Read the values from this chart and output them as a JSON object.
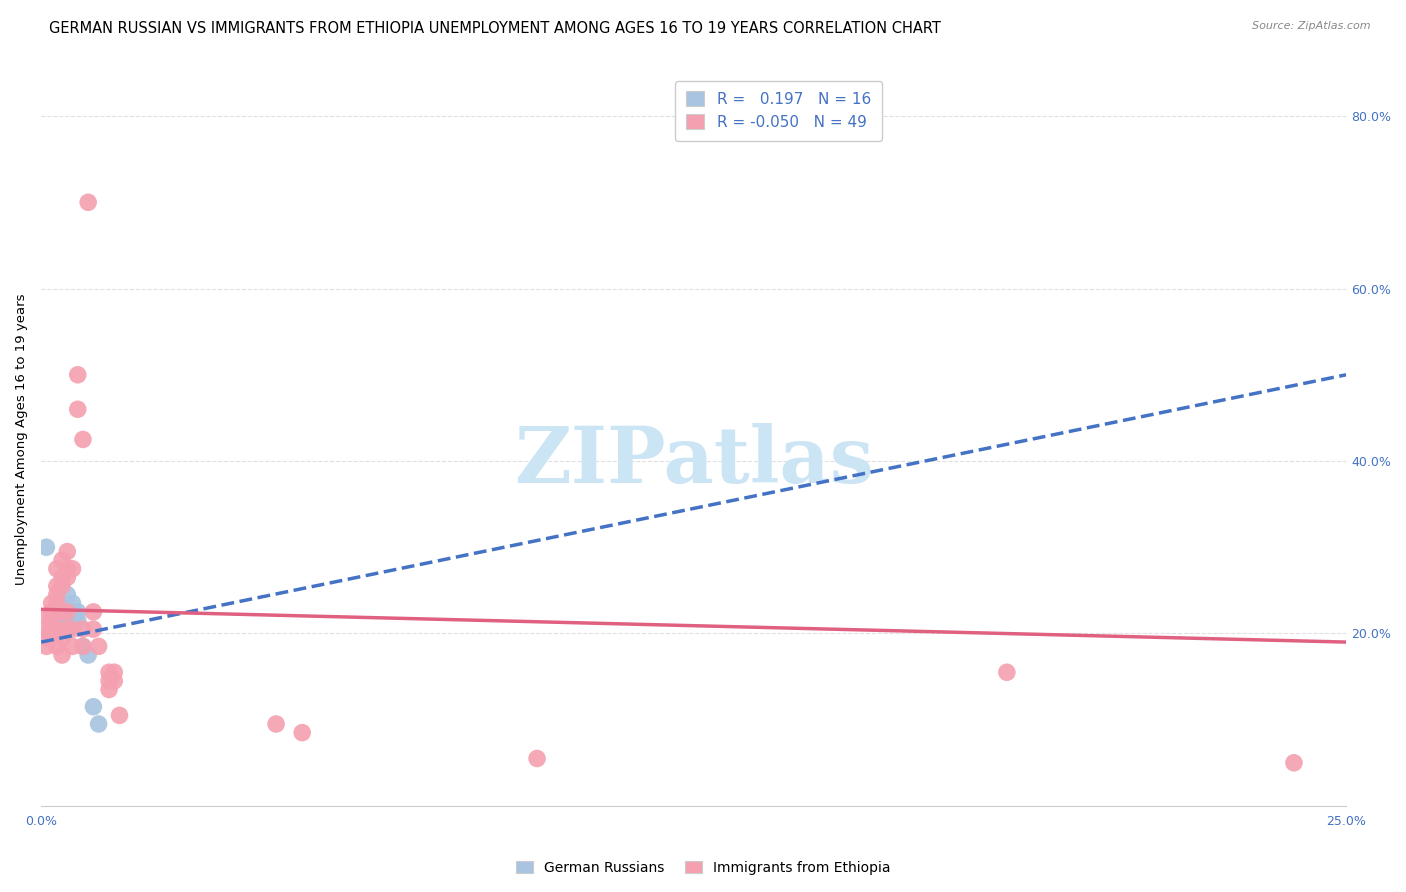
{
  "title": "GERMAN RUSSIAN VS IMMIGRANTS FROM ETHIOPIA UNEMPLOYMENT AMONG AGES 16 TO 19 YEARS CORRELATION CHART",
  "source": "Source: ZipAtlas.com",
  "ylabel": "Unemployment Among Ages 16 to 19 years",
  "xmin": 0.0,
  "xmax": 0.25,
  "ymin": 0.0,
  "ymax": 0.85,
  "yticks_right": [
    0.2,
    0.4,
    0.6,
    0.8
  ],
  "ytick_labels_right": [
    "20.0%",
    "40.0%",
    "60.0%",
    "80.0%"
  ],
  "xtick_positions": [
    0.0,
    0.05,
    0.1,
    0.15,
    0.2,
    0.25
  ],
  "xtick_labels": [
    "0.0%",
    "",
    "",
    "",
    "",
    "25.0%"
  ],
  "blue_R": 0.197,
  "blue_N": 16,
  "pink_R": -0.05,
  "pink_N": 49,
  "blue_scatter_color": "#a8c4e0",
  "pink_scatter_color": "#f4a0b0",
  "blue_line_color": "#4472c4",
  "pink_line_color": "#e06080",
  "blue_scatter": [
    [
      0.001,
      0.3
    ],
    [
      0.003,
      0.22
    ],
    [
      0.003,
      0.21
    ],
    [
      0.004,
      0.225
    ],
    [
      0.004,
      0.215
    ],
    [
      0.005,
      0.215
    ],
    [
      0.005,
      0.245
    ],
    [
      0.006,
      0.235
    ],
    [
      0.006,
      0.225
    ],
    [
      0.006,
      0.215
    ],
    [
      0.007,
      0.225
    ],
    [
      0.007,
      0.215
    ],
    [
      0.008,
      0.185
    ],
    [
      0.009,
      0.175
    ],
    [
      0.01,
      0.115
    ],
    [
      0.011,
      0.095
    ]
  ],
  "pink_scatter": [
    [
      0.001,
      0.22
    ],
    [
      0.001,
      0.205
    ],
    [
      0.001,
      0.195
    ],
    [
      0.001,
      0.185
    ],
    [
      0.002,
      0.235
    ],
    [
      0.002,
      0.225
    ],
    [
      0.002,
      0.215
    ],
    [
      0.002,
      0.205
    ],
    [
      0.002,
      0.195
    ],
    [
      0.003,
      0.275
    ],
    [
      0.003,
      0.255
    ],
    [
      0.003,
      0.245
    ],
    [
      0.003,
      0.235
    ],
    [
      0.003,
      0.205
    ],
    [
      0.003,
      0.185
    ],
    [
      0.004,
      0.285
    ],
    [
      0.004,
      0.265
    ],
    [
      0.004,
      0.255
    ],
    [
      0.004,
      0.225
    ],
    [
      0.004,
      0.195
    ],
    [
      0.004,
      0.175
    ],
    [
      0.005,
      0.295
    ],
    [
      0.005,
      0.275
    ],
    [
      0.005,
      0.265
    ],
    [
      0.005,
      0.225
    ],
    [
      0.005,
      0.205
    ],
    [
      0.006,
      0.275
    ],
    [
      0.006,
      0.205
    ],
    [
      0.006,
      0.185
    ],
    [
      0.007,
      0.5
    ],
    [
      0.007,
      0.46
    ],
    [
      0.008,
      0.425
    ],
    [
      0.008,
      0.205
    ],
    [
      0.008,
      0.185
    ],
    [
      0.009,
      0.7
    ],
    [
      0.01,
      0.225
    ],
    [
      0.01,
      0.205
    ],
    [
      0.011,
      0.185
    ],
    [
      0.013,
      0.155
    ],
    [
      0.013,
      0.145
    ],
    [
      0.013,
      0.135
    ],
    [
      0.014,
      0.155
    ],
    [
      0.014,
      0.145
    ],
    [
      0.015,
      0.105
    ],
    [
      0.045,
      0.095
    ],
    [
      0.05,
      0.085
    ],
    [
      0.095,
      0.055
    ],
    [
      0.24,
      0.05
    ],
    [
      0.185,
      0.155
    ]
  ],
  "blue_line_x": [
    0.0,
    0.25
  ],
  "blue_line_y": [
    0.19,
    0.5
  ],
  "pink_line_x": [
    0.0,
    0.25
  ],
  "pink_line_y": [
    0.228,
    0.19
  ],
  "watermark": "ZIPatlas",
  "watermark_color": "#cce5f5",
  "background_color": "#ffffff",
  "grid_color": "#e0e0e0",
  "title_fontsize": 10.5,
  "axis_label_fontsize": 9.5,
  "tick_fontsize": 9,
  "legend_fontsize": 11,
  "legend_label_blue": "German Russians",
  "legend_label_pink": "Immigrants from Ethiopia"
}
